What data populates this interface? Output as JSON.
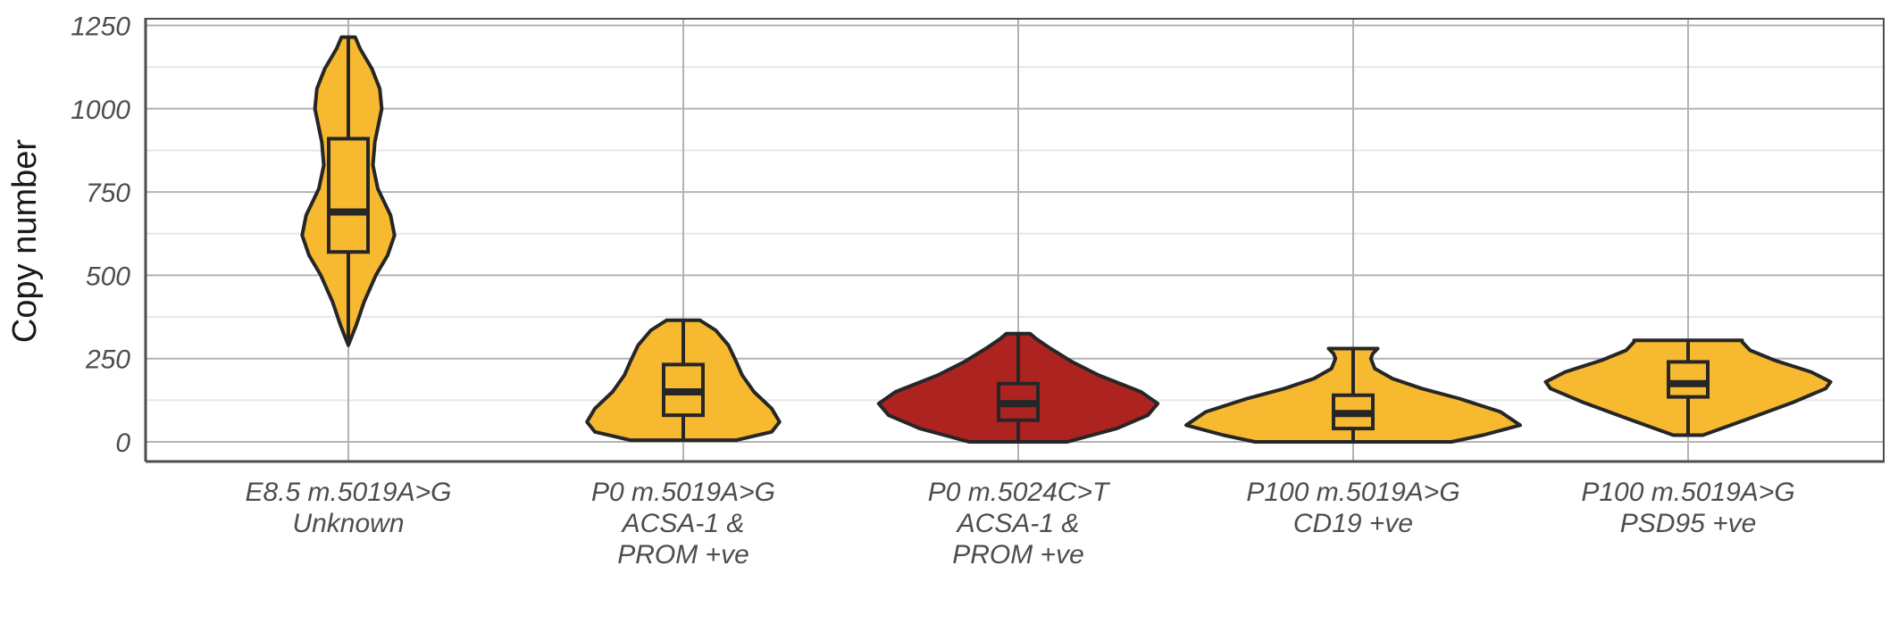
{
  "chart_data": {
    "type": "violin",
    "title": "",
    "xlabel": "",
    "ylabel": "Copy number",
    "ylim": [
      -60,
      1275
    ],
    "yticks": [
      0,
      250,
      500,
      750,
      1000,
      1250
    ],
    "ytick_labels": [
      "0",
      "250",
      "500",
      "750",
      "1000",
      "1250"
    ],
    "grid": true,
    "legend": "none",
    "colors": {
      "yellow": "#f6b92f",
      "red": "#ad2320",
      "outline": "#262626",
      "grid_major": "#b3b3b3",
      "grid_minor": "#e6e6e6",
      "axis": "#4d4d4d"
    },
    "categories": [
      {
        "label_lines": [
          "E8.5 m.5019A>G",
          "Unknown"
        ],
        "color": "#f6b92f",
        "min": 290,
        "q1": 570,
        "median": 690,
        "q3": 910,
        "max": 1215,
        "density": [
          [
            290,
            0
          ],
          [
            350,
            0.08
          ],
          [
            420,
            0.16
          ],
          [
            500,
            0.28
          ],
          [
            560,
            0.4
          ],
          [
            620,
            0.47
          ],
          [
            680,
            0.43
          ],
          [
            760,
            0.3
          ],
          [
            830,
            0.25
          ],
          [
            900,
            0.27
          ],
          [
            1000,
            0.34
          ],
          [
            1060,
            0.32
          ],
          [
            1120,
            0.24
          ],
          [
            1180,
            0.12
          ],
          [
            1215,
            0.07
          ]
        ]
      },
      {
        "label_lines": [
          "P0 m.5019A>G",
          "ACSA-1 &",
          "PROM +ve"
        ],
        "color": "#f6b92f",
        "min": 5,
        "q1": 80,
        "median": 150,
        "q3": 232,
        "max": 365,
        "density": [
          [
            5,
            0.54
          ],
          [
            30,
            0.9
          ],
          [
            60,
            0.98
          ],
          [
            100,
            0.9
          ],
          [
            150,
            0.72
          ],
          [
            200,
            0.6
          ],
          [
            240,
            0.54
          ],
          [
            290,
            0.46
          ],
          [
            335,
            0.33
          ],
          [
            365,
            0.17
          ]
        ]
      },
      {
        "label_lines": [
          "P0 m.5024C>T",
          "ACSA-1 &",
          "PROM +ve"
        ],
        "color": "#ad2320",
        "min": 0,
        "q1": 65,
        "median": 115,
        "q3": 175,
        "max": 325,
        "density": [
          [
            0,
            0.5
          ],
          [
            40,
            1.0
          ],
          [
            80,
            1.32
          ],
          [
            115,
            1.42
          ],
          [
            150,
            1.25
          ],
          [
            200,
            0.82
          ],
          [
            240,
            0.55
          ],
          [
            280,
            0.33
          ],
          [
            310,
            0.18
          ],
          [
            325,
            0.12
          ]
        ]
      },
      {
        "label_lines": [
          "P100 m.5019A>G",
          "CD19 +ve"
        ],
        "color": "#f6b92f",
        "min": 0,
        "q1": 40,
        "median": 85,
        "q3": 140,
        "max": 280,
        "density": [
          [
            0,
            1.0
          ],
          [
            20,
            1.32
          ],
          [
            50,
            1.7
          ],
          [
            90,
            1.5
          ],
          [
            130,
            1.08
          ],
          [
            160,
            0.7
          ],
          [
            190,
            0.4
          ],
          [
            220,
            0.22
          ],
          [
            250,
            0.18
          ],
          [
            265,
            0.2
          ],
          [
            280,
            0.25
          ]
        ]
      },
      {
        "label_lines": [
          "P100 m.5019A>G",
          "PSD95 +ve"
        ],
        "color": "#f6b92f",
        "min": 20,
        "q1": 135,
        "median": 175,
        "q3": 240,
        "max": 305,
        "density": [
          [
            20,
            0.15
          ],
          [
            70,
            0.62
          ],
          [
            120,
            1.08
          ],
          [
            160,
            1.4
          ],
          [
            180,
            1.45
          ],
          [
            210,
            1.25
          ],
          [
            245,
            0.88
          ],
          [
            275,
            0.63
          ],
          [
            300,
            0.55
          ],
          [
            305,
            0.55
          ]
        ]
      }
    ]
  }
}
